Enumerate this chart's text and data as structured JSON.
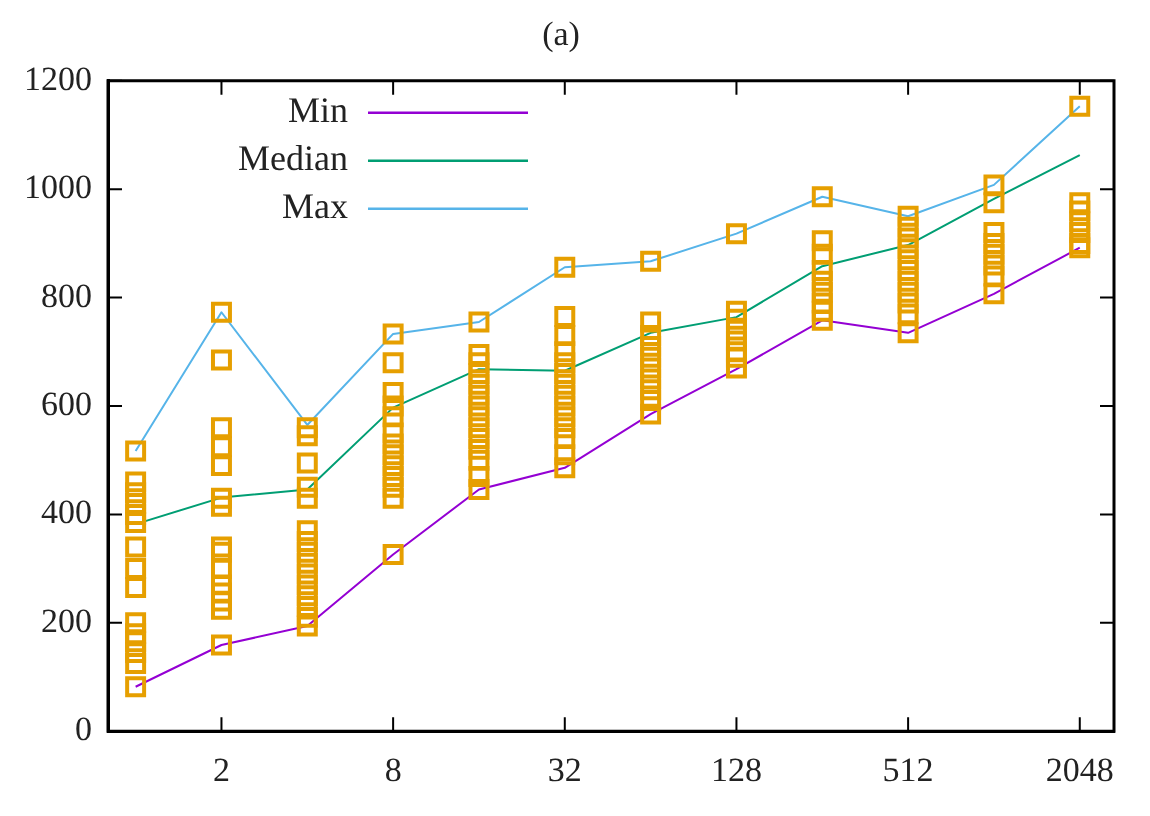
{
  "chart_data": {
    "type": "line",
    "title": "(a)",
    "log": "x",
    "xlim": [
      0.8,
      2700
    ],
    "xticks": [
      2,
      8,
      32,
      128,
      512,
      2048
    ],
    "ylim": [
      0,
      1200
    ],
    "yticks": [
      0,
      200,
      400,
      600,
      800,
      1000,
      1200
    ],
    "grid": false,
    "legend": "top left",
    "x": [
      1,
      2,
      4,
      8,
      16,
      32,
      64,
      128,
      256,
      512,
      1024,
      2048
    ],
    "series": [
      {
        "name": "Min",
        "color": "#9400d3",
        "marker": "none",
        "values": [
          82,
          159,
          194,
          326,
          446,
          486,
          585,
          668,
          758,
          735,
          807,
          892
        ]
      },
      {
        "name": "Median",
        "color": "#009e73",
        "marker": "none",
        "values": [
          382,
          431,
          446,
          597,
          668,
          665,
          735,
          764,
          858,
          897,
          982,
          1063
        ]
      },
      {
        "name": "Max",
        "color": "#56b4e9",
        "marker": "none",
        "values": [
          517,
          773,
          565,
          733,
          755,
          856,
          867,
          918,
          986,
          950,
          1008,
          1153
        ]
      },
      {
        "type": "scatter",
        "color": "#e69f00",
        "marker": "square",
        "x": [
          1,
          1,
          1,
          1,
          1,
          1,
          1,
          1,
          1,
          1,
          1,
          1,
          1,
          1,
          1,
          2,
          2,
          2,
          2,
          2,
          2,
          2,
          2,
          2,
          2,
          2,
          2,
          2,
          2,
          2,
          4,
          4,
          4,
          4,
          4,
          4,
          4,
          4,
          4,
          4,
          4,
          4,
          4,
          4,
          4,
          8,
          8,
          8,
          8,
          8,
          8,
          8,
          8,
          8,
          8,
          8,
          8,
          8,
          16,
          16,
          16,
          16,
          16,
          16,
          16,
          16,
          16,
          16,
          16,
          16,
          16,
          16,
          32,
          32,
          32,
          32,
          32,
          32,
          32,
          32,
          32,
          32,
          32,
          32,
          32,
          32,
          64,
          64,
          64,
          64,
          64,
          64,
          64,
          64,
          64,
          64,
          128,
          128,
          128,
          128,
          128,
          128,
          128,
          128,
          256,
          256,
          256,
          256,
          256,
          256,
          256,
          256,
          256,
          512,
          512,
          512,
          512,
          512,
          512,
          512,
          512,
          512,
          512,
          512,
          1024,
          1024,
          1024,
          1024,
          1024,
          1024,
          1024,
          1024,
          2048,
          2048,
          2048,
          2048,
          2048,
          2048,
          2048
        ],
        "values": [
          517,
          460,
          440,
          420,
          400,
          385,
          340,
          300,
          265,
          200,
          180,
          165,
          145,
          125,
          82,
          773,
          685,
          560,
          525,
          490,
          430,
          415,
          340,
          330,
          300,
          270,
          255,
          240,
          225,
          159,
          560,
          545,
          495,
          450,
          430,
          370,
          350,
          330,
          310,
          290,
          270,
          250,
          230,
          210,
          194,
          733,
          680,
          625,
          600,
          580,
          550,
          530,
          510,
          490,
          470,
          450,
          430,
          326,
          755,
          695,
          680,
          660,
          640,
          620,
          600,
          580,
          560,
          540,
          520,
          500,
          470,
          446,
          856,
          765,
          730,
          700,
          680,
          660,
          640,
          620,
          600,
          580,
          560,
          540,
          510,
          486,
          867,
          755,
          730,
          710,
          690,
          670,
          650,
          630,
          610,
          585,
          918,
          775,
          760,
          740,
          720,
          700,
          690,
          670,
          986,
          905,
          880,
          850,
          830,
          810,
          790,
          775,
          758,
          950,
          930,
          910,
          890,
          870,
          850,
          830,
          810,
          790,
          770,
          735,
          1008,
          975,
          920,
          900,
          880,
          860,
          840,
          807,
          1153,
          975,
          960,
          940,
          920,
          900,
          892
        ]
      }
    ]
  }
}
